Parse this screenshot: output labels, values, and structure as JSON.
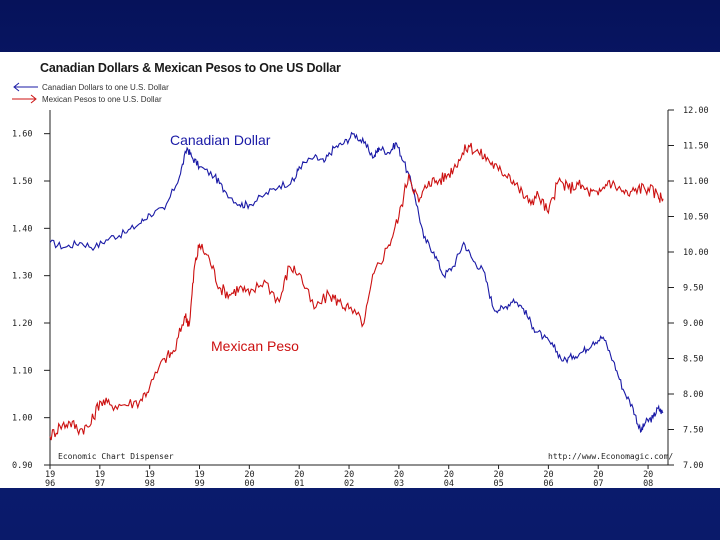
{
  "chart_data": {
    "type": "line",
    "title": "Canadian Dollars & Mexican Pesos to One US Dollar",
    "x_tick_labels": [
      [
        "19",
        "96"
      ],
      [
        "19",
        "97"
      ],
      [
        "19",
        "98"
      ],
      [
        "19",
        "99"
      ],
      [
        "20",
        "00"
      ],
      [
        "20",
        "01"
      ],
      [
        "20",
        "02"
      ],
      [
        "20",
        "03"
      ],
      [
        "20",
        "04"
      ],
      [
        "20",
        "05"
      ],
      [
        "20",
        "06"
      ],
      [
        "20",
        "07"
      ],
      [
        "20",
        "08"
      ]
    ],
    "x_range": [
      1996,
      2008.4
    ],
    "y_left": {
      "range": [
        0.9,
        1.65
      ],
      "ticks": [
        "0.90",
        "1.00",
        "1.10",
        "1.20",
        "1.30",
        "1.40",
        "1.50",
        "1.60"
      ]
    },
    "y_right": {
      "range": [
        7.0,
        12.0
      ],
      "ticks": [
        "7.00",
        "7.50",
        "8.00",
        "8.50",
        "9.00",
        "9.50",
        "10.00",
        "10.50",
        "11.00",
        "11.50",
        "12.00"
      ]
    },
    "grid": false,
    "series": [
      {
        "name": "Canadian Dollars to one U.S. Dollar",
        "axis": "left",
        "color": "#1a1aa6",
        "points": [
          [
            1996.0,
            1.37
          ],
          [
            1996.3,
            1.36
          ],
          [
            1996.6,
            1.37
          ],
          [
            1996.9,
            1.36
          ],
          [
            1997.2,
            1.38
          ],
          [
            1997.5,
            1.39
          ],
          [
            1997.8,
            1.41
          ],
          [
            1998.0,
            1.43
          ],
          [
            1998.3,
            1.44
          ],
          [
            1998.6,
            1.51
          ],
          [
            1998.75,
            1.57
          ],
          [
            1998.85,
            1.55
          ],
          [
            1999.0,
            1.53
          ],
          [
            1999.3,
            1.51
          ],
          [
            1999.5,
            1.48
          ],
          [
            1999.8,
            1.45
          ],
          [
            2000.0,
            1.45
          ],
          [
            2000.3,
            1.47
          ],
          [
            2000.6,
            1.49
          ],
          [
            2000.9,
            1.5
          ],
          [
            2001.0,
            1.53
          ],
          [
            2001.3,
            1.55
          ],
          [
            2001.5,
            1.54
          ],
          [
            2001.7,
            1.57
          ],
          [
            2001.9,
            1.58
          ],
          [
            2002.1,
            1.6
          ],
          [
            2002.3,
            1.58
          ],
          [
            2002.5,
            1.55
          ],
          [
            2002.6,
            1.57
          ],
          [
            2002.8,
            1.56
          ],
          [
            2002.95,
            1.58
          ],
          [
            2003.1,
            1.54
          ],
          [
            2003.3,
            1.48
          ],
          [
            2003.5,
            1.38
          ],
          [
            2003.7,
            1.35
          ],
          [
            2003.9,
            1.3
          ],
          [
            2004.1,
            1.32
          ],
          [
            2004.3,
            1.37
          ],
          [
            2004.5,
            1.33
          ],
          [
            2004.7,
            1.31
          ],
          [
            2004.9,
            1.23
          ],
          [
            2005.1,
            1.23
          ],
          [
            2005.3,
            1.25
          ],
          [
            2005.5,
            1.23
          ],
          [
            2005.7,
            1.19
          ],
          [
            2005.9,
            1.17
          ],
          [
            2006.1,
            1.15
          ],
          [
            2006.3,
            1.12
          ],
          [
            2006.5,
            1.13
          ],
          [
            2006.7,
            1.14
          ],
          [
            2006.9,
            1.16
          ],
          [
            2007.1,
            1.17
          ],
          [
            2007.3,
            1.12
          ],
          [
            2007.5,
            1.06
          ],
          [
            2007.7,
            1.02
          ],
          [
            2007.85,
            0.97
          ],
          [
            2007.95,
            0.99
          ],
          [
            2008.1,
            1.0
          ],
          [
            2008.2,
            1.02
          ],
          [
            2008.3,
            1.01
          ]
        ]
      },
      {
        "name": "Mexican Pesos to one U.S. Dollar",
        "axis": "right",
        "color": "#cc1111",
        "points": [
          [
            1996.0,
            7.4
          ],
          [
            1996.2,
            7.55
          ],
          [
            1996.4,
            7.6
          ],
          [
            1996.6,
            7.5
          ],
          [
            1996.8,
            7.55
          ],
          [
            1997.0,
            7.9
          ],
          [
            1997.2,
            7.85
          ],
          [
            1997.5,
            7.85
          ],
          [
            1997.8,
            7.9
          ],
          [
            1998.0,
            8.1
          ],
          [
            1998.3,
            8.5
          ],
          [
            1998.5,
            8.6
          ],
          [
            1998.7,
            9.1
          ],
          [
            1998.8,
            9.0
          ],
          [
            1998.9,
            9.8
          ],
          [
            1999.0,
            10.1
          ],
          [
            1999.2,
            9.9
          ],
          [
            1999.4,
            9.5
          ],
          [
            1999.6,
            9.4
          ],
          [
            1999.8,
            9.5
          ],
          [
            2000.0,
            9.4
          ],
          [
            2000.3,
            9.6
          ],
          [
            2000.6,
            9.3
          ],
          [
            2000.8,
            9.8
          ],
          [
            2001.0,
            9.7
          ],
          [
            2001.3,
            9.2
          ],
          [
            2001.6,
            9.4
          ],
          [
            2001.8,
            9.3
          ],
          [
            2002.0,
            9.2
          ],
          [
            2002.3,
            9.0
          ],
          [
            2002.5,
            9.7
          ],
          [
            2002.8,
            10.1
          ],
          [
            2003.0,
            10.5
          ],
          [
            2003.2,
            11.1
          ],
          [
            2003.4,
            10.7
          ],
          [
            2003.6,
            11.0
          ],
          [
            2003.8,
            11.0
          ],
          [
            2004.0,
            11.1
          ],
          [
            2004.2,
            11.3
          ],
          [
            2004.4,
            11.5
          ],
          [
            2004.6,
            11.4
          ],
          [
            2004.8,
            11.3
          ],
          [
            2005.0,
            11.15
          ],
          [
            2005.2,
            11.1
          ],
          [
            2005.4,
            10.9
          ],
          [
            2005.6,
            10.7
          ],
          [
            2005.8,
            10.8
          ],
          [
            2006.0,
            10.55
          ],
          [
            2006.2,
            11.0
          ],
          [
            2006.4,
            10.9
          ],
          [
            2006.6,
            10.95
          ],
          [
            2006.8,
            10.85
          ],
          [
            2007.0,
            10.8
          ],
          [
            2007.2,
            11.0
          ],
          [
            2007.4,
            10.9
          ],
          [
            2007.6,
            10.8
          ],
          [
            2007.8,
            10.9
          ],
          [
            2008.0,
            10.9
          ],
          [
            2008.2,
            10.8
          ],
          [
            2008.3,
            10.75
          ]
        ]
      }
    ],
    "annotations": [
      {
        "text": "Canadian Dollar",
        "color": "#1a1aa6"
      },
      {
        "text": "Mexican Peso",
        "color": "#cc1111"
      }
    ],
    "footer_left": "Economic Chart Dispenser",
    "footer_right": "http://www.Economagic.com/"
  }
}
